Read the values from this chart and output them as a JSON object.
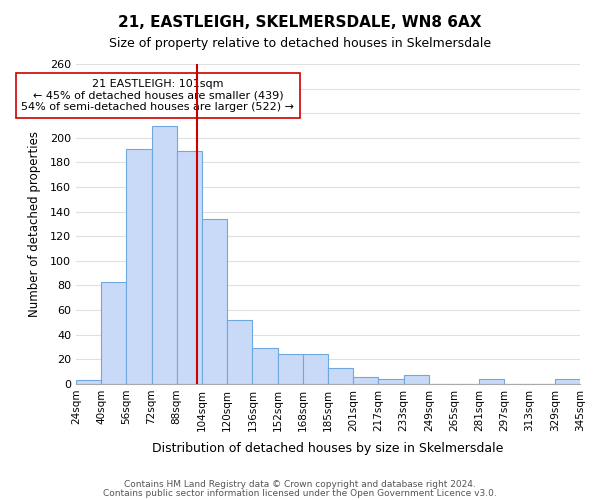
{
  "title": "21, EASTLEIGH, SKELMERSDALE, WN8 6AX",
  "subtitle": "Size of property relative to detached houses in Skelmersdale",
  "xlabel": "Distribution of detached houses by size in Skelmersdale",
  "ylabel": "Number of detached properties",
  "bin_labels": [
    "24sqm",
    "40sqm",
    "56sqm",
    "72sqm",
    "88sqm",
    "104sqm",
    "120sqm",
    "136sqm",
    "152sqm",
    "168sqm",
    "185sqm",
    "201sqm",
    "217sqm",
    "233sqm",
    "249sqm",
    "265sqm",
    "281sqm",
    "297sqm",
    "313sqm",
    "329sqm",
    "345sqm"
  ],
  "bar_heights": [
    3,
    83,
    191,
    210,
    189,
    134,
    52,
    29,
    24,
    24,
    13,
    6,
    4,
    7,
    0,
    0,
    4,
    0,
    0,
    4
  ],
  "bar_color": "#c9daf8",
  "bar_edge_color": "#6fa8dc",
  "property_line_x": 101,
  "property_line_color": "#cc0000",
  "annotation_title": "21 EASTLEIGH: 101sqm",
  "annotation_line1": "← 45% of detached houses are smaller (439)",
  "annotation_line2": "54% of semi-detached houses are larger (522) →",
  "annotation_box_color": "#ffffff",
  "annotation_box_edge": "#cc0000",
  "ylim": [
    0,
    260
  ],
  "yticks": [
    0,
    20,
    40,
    60,
    80,
    100,
    120,
    140,
    160,
    180,
    200,
    220,
    240,
    260
  ],
  "footer1": "Contains HM Land Registry data © Crown copyright and database right 2024.",
  "footer2": "Contains public sector information licensed under the Open Government Licence v3.0.",
  "background_color": "#ffffff",
  "grid_color": "#e0e0e0",
  "bin_width": 16
}
